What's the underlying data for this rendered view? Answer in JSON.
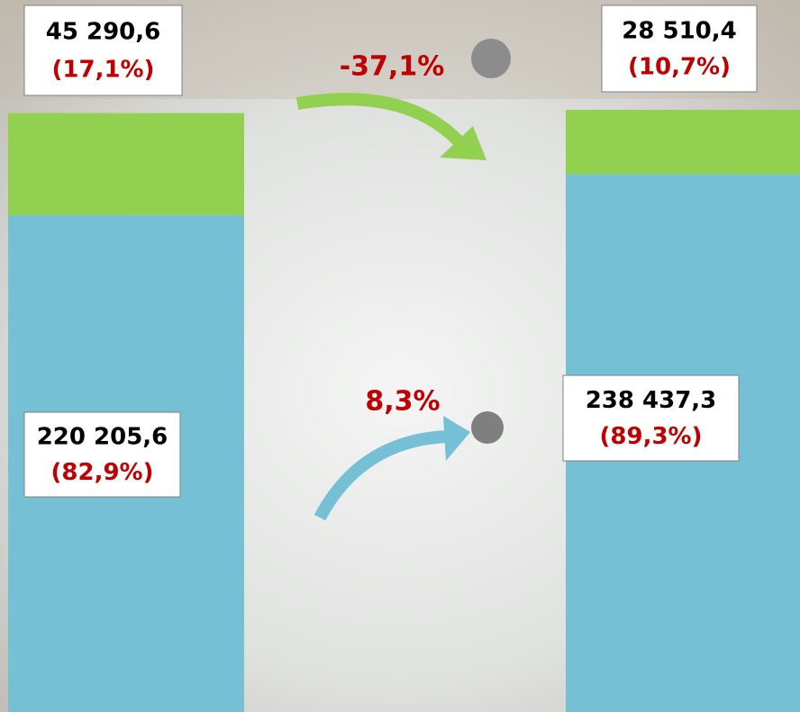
{
  "chart_data": {
    "type": "bar",
    "stacked": true,
    "categories": [
      null,
      null
    ],
    "series": [
      {
        "color": "#75c0d5",
        "values": [
          220205.6,
          238437.3
        ],
        "value_labels": [
          "220 205,6",
          "238 437,3"
        ],
        "shares": [
          82.9,
          89.3
        ],
        "share_labels": [
          "(82,9%)",
          "(89,3%)"
        ]
      },
      {
        "color": "#92d050",
        "values": [
          45290.6,
          28510.4
        ],
        "value_labels": [
          "45 290,6",
          "28 510,4"
        ],
        "shares": [
          17.1,
          10.7
        ],
        "share_labels": [
          "(17,1%)",
          "(10,7%)"
        ]
      }
    ],
    "annotations": [
      {
        "value": -37.1,
        "label": "-37,1%",
        "color": "#92d050"
      },
      {
        "value": 8.3,
        "label": "8,3%",
        "color": "#75c0d5"
      }
    ]
  }
}
